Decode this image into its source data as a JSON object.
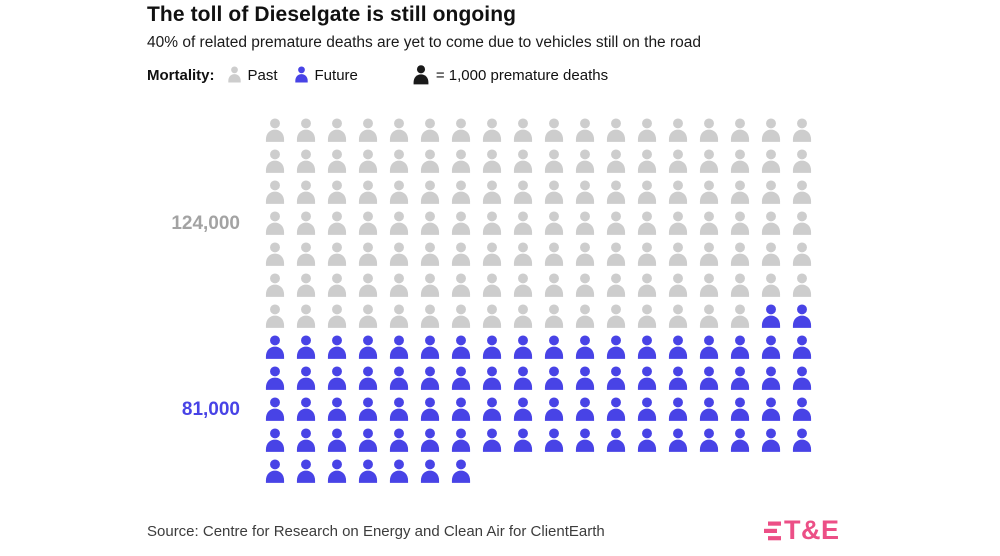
{
  "header": {
    "title": "The toll of Dieselgate is still ongoing",
    "subtitle": "40% of related premature deaths are yet to come due to vehicles still on the road"
  },
  "legend": {
    "label": "Mortality:",
    "past_label": "Past",
    "future_label": "Future",
    "unit_label": "= 1,000 premature deaths"
  },
  "chart_data": {
    "type": "pictogram",
    "title": "The toll of Dieselgate is still ongoing",
    "subtitle": "40% of related premature deaths are yet to come due to vehicles still on the road",
    "unit_per_icon": 1000,
    "unit_note": "= 1,000 premature deaths",
    "columns": 18,
    "categories": [
      "Past",
      "Future"
    ],
    "series": [
      {
        "name": "Past",
        "value": 124000,
        "icons": 124,
        "label": "124,000",
        "color": "#cdcdcd",
        "label_color": "#a3a3a3"
      },
      {
        "name": "Future",
        "value": 81000,
        "icons": 81,
        "label": "81,000",
        "color": "#4843e6",
        "label_color": "#4843e6"
      }
    ]
  },
  "colors": {
    "past": "#cdcdcd",
    "future": "#4843e6",
    "unit": "#1a1a1a",
    "logo": "#ec4f86"
  },
  "footer": {
    "source": "Source: Centre for Research on Energy and Clean Air for ClientEarth",
    "logo": "T&E"
  }
}
